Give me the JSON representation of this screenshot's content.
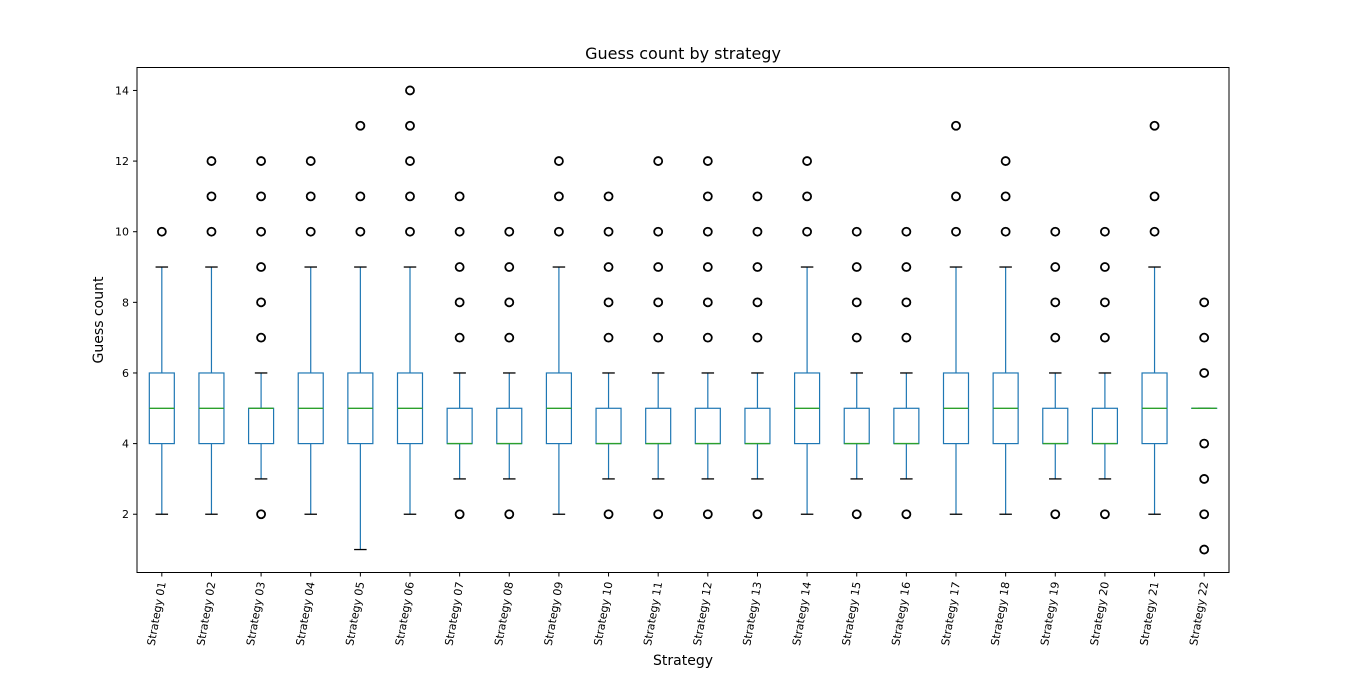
{
  "chart_data": {
    "type": "box",
    "title": "Guess count by strategy",
    "xlabel": "Strategy",
    "ylabel": "Guess count",
    "ylim": [
      0.35,
      14.65
    ],
    "yticks": [
      2,
      4,
      6,
      8,
      10,
      12,
      14
    ],
    "grid": false,
    "legend": "none",
    "colors": {
      "box": "#1f77b4",
      "median": "#2ca02c",
      "outlier": "#000000"
    },
    "categories": [
      "Strategy 01",
      "Strategy 02",
      "Strategy 03",
      "Strategy 04",
      "Strategy 05",
      "Strategy 06",
      "Strategy 07",
      "Strategy 08",
      "Strategy 09",
      "Strategy 10",
      "Strategy 11",
      "Strategy 12",
      "Strategy 13",
      "Strategy 14",
      "Strategy 15",
      "Strategy 16",
      "Strategy 17",
      "Strategy 18",
      "Strategy 19",
      "Strategy 20",
      "Strategy 21",
      "Strategy 22"
    ],
    "boxes": [
      {
        "whislo": 2,
        "q1": 4,
        "med": 5,
        "q3": 6,
        "whishi": 9,
        "fliers": [
          10
        ]
      },
      {
        "whislo": 2,
        "q1": 4,
        "med": 5,
        "q3": 6,
        "whishi": 9,
        "fliers": [
          10,
          11,
          12
        ]
      },
      {
        "whislo": 3,
        "q1": 4,
        "med": 5,
        "q3": 5,
        "whishi": 6,
        "fliers": [
          2,
          7,
          8,
          9,
          10,
          11,
          12
        ]
      },
      {
        "whislo": 2,
        "q1": 4,
        "med": 5,
        "q3": 6,
        "whishi": 9,
        "fliers": [
          10,
          11,
          12
        ]
      },
      {
        "whislo": 1,
        "q1": 4,
        "med": 5,
        "q3": 6,
        "whishi": 9,
        "fliers": [
          10,
          11,
          13
        ]
      },
      {
        "whislo": 2,
        "q1": 4,
        "med": 5,
        "q3": 6,
        "whishi": 9,
        "fliers": [
          10,
          11,
          12,
          13,
          14
        ]
      },
      {
        "whislo": 3,
        "q1": 4,
        "med": 4,
        "q3": 5,
        "whishi": 6,
        "fliers": [
          2,
          7,
          8,
          9,
          10,
          11
        ]
      },
      {
        "whislo": 3,
        "q1": 4,
        "med": 4,
        "q3": 5,
        "whishi": 6,
        "fliers": [
          2,
          7,
          8,
          9,
          10
        ]
      },
      {
        "whislo": 2,
        "q1": 4,
        "med": 5,
        "q3": 6,
        "whishi": 9,
        "fliers": [
          10,
          11,
          12
        ]
      },
      {
        "whislo": 3,
        "q1": 4,
        "med": 4,
        "q3": 5,
        "whishi": 6,
        "fliers": [
          2,
          7,
          8,
          9,
          10,
          11
        ]
      },
      {
        "whislo": 3,
        "q1": 4,
        "med": 4,
        "q3": 5,
        "whishi": 6,
        "fliers": [
          2,
          7,
          8,
          9,
          10,
          12
        ]
      },
      {
        "whislo": 3,
        "q1": 4,
        "med": 4,
        "q3": 5,
        "whishi": 6,
        "fliers": [
          2,
          7,
          8,
          9,
          10,
          11,
          12
        ]
      },
      {
        "whislo": 3,
        "q1": 4,
        "med": 4,
        "q3": 5,
        "whishi": 6,
        "fliers": [
          2,
          7,
          8,
          9,
          10,
          11
        ]
      },
      {
        "whislo": 2,
        "q1": 4,
        "med": 5,
        "q3": 6,
        "whishi": 9,
        "fliers": [
          10,
          11,
          12
        ]
      },
      {
        "whislo": 3,
        "q1": 4,
        "med": 4,
        "q3": 5,
        "whishi": 6,
        "fliers": [
          2,
          7,
          8,
          9,
          10
        ]
      },
      {
        "whislo": 3,
        "q1": 4,
        "med": 4,
        "q3": 5,
        "whishi": 6,
        "fliers": [
          2,
          7,
          8,
          9,
          10
        ]
      },
      {
        "whislo": 2,
        "q1": 4,
        "med": 5,
        "q3": 6,
        "whishi": 9,
        "fliers": [
          10,
          11,
          13
        ]
      },
      {
        "whislo": 2,
        "q1": 4,
        "med": 5,
        "q3": 6,
        "whishi": 9,
        "fliers": [
          10,
          11,
          12
        ]
      },
      {
        "whislo": 3,
        "q1": 4,
        "med": 4,
        "q3": 5,
        "whishi": 6,
        "fliers": [
          2,
          7,
          8,
          9,
          10
        ]
      },
      {
        "whislo": 3,
        "q1": 4,
        "med": 4,
        "q3": 5,
        "whishi": 6,
        "fliers": [
          2,
          7,
          8,
          9,
          10
        ]
      },
      {
        "whislo": 2,
        "q1": 4,
        "med": 5,
        "q3": 6,
        "whishi": 9,
        "fliers": [
          10,
          11,
          13
        ]
      },
      {
        "whislo": 5,
        "q1": 5,
        "med": 5,
        "q3": 5,
        "whishi": 5,
        "fliers": [
          1,
          2,
          3,
          4,
          6,
          7,
          8
        ]
      }
    ]
  }
}
